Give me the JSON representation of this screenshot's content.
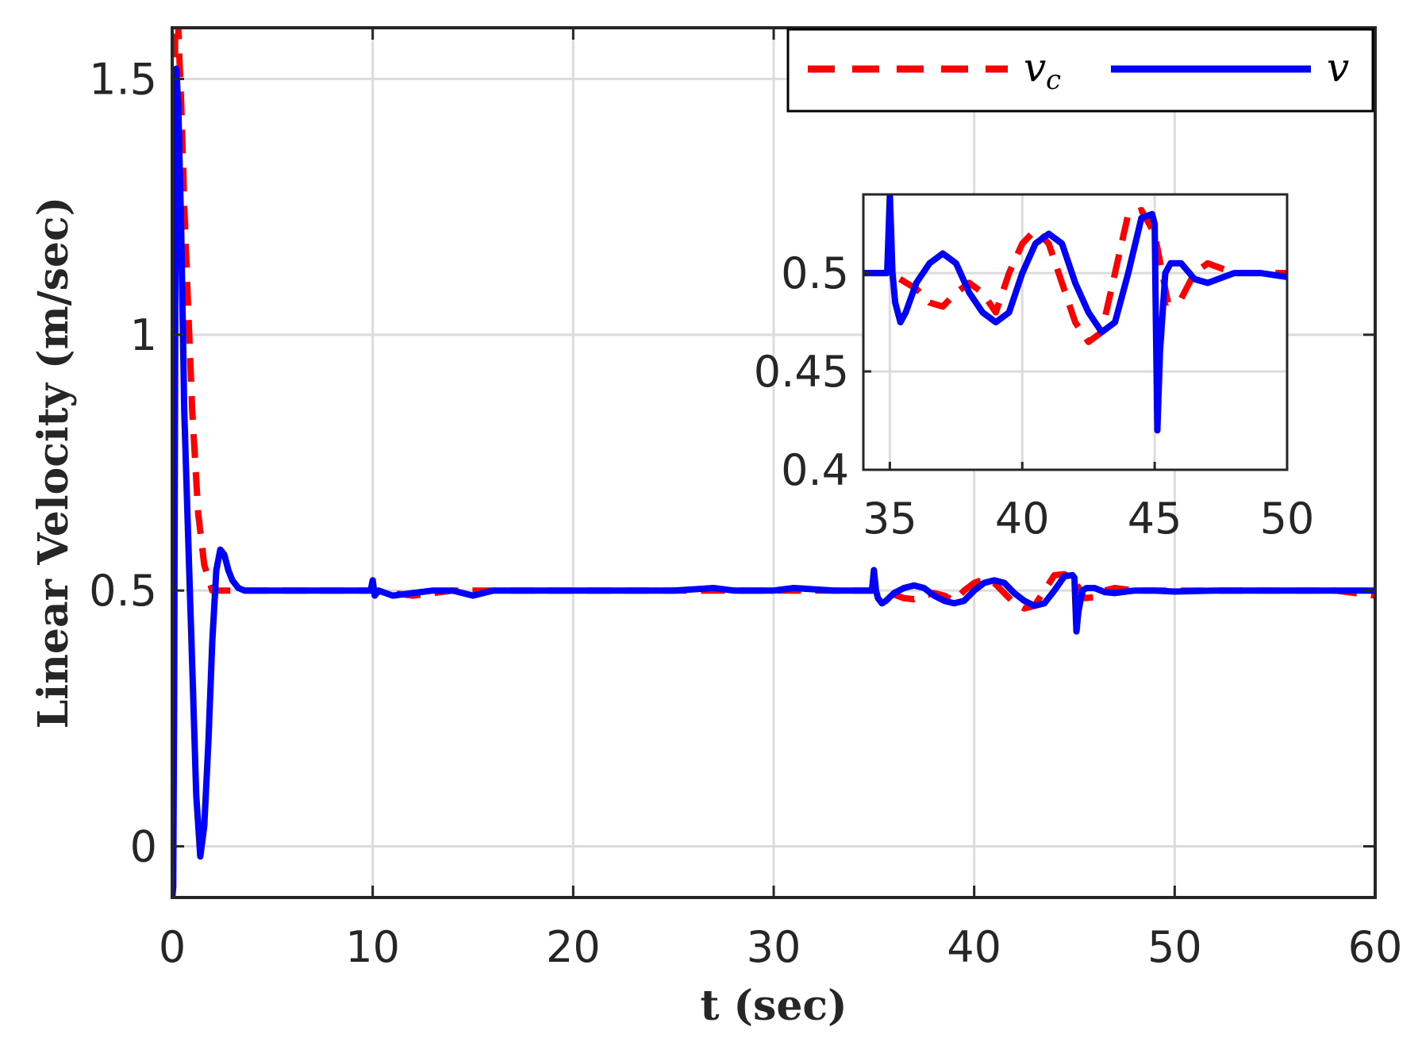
{
  "chart_data": {
    "type": "line",
    "xlabel": "t (sec)",
    "ylabel": "Linear Velocity (m/sec)",
    "xlim": [
      0,
      60
    ],
    "ylim": [
      -0.1,
      1.6
    ],
    "xticks": [
      0,
      10,
      20,
      30,
      40,
      50,
      60
    ],
    "yticks": [
      0,
      0.5,
      1,
      1.5
    ],
    "xtick_labels": [
      "0",
      "10",
      "20",
      "30",
      "40",
      "50",
      "60"
    ],
    "ytick_labels": [
      "0",
      "0.5",
      "1",
      "1.5"
    ],
    "grid": true,
    "legend_position": "top-right",
    "colors": {
      "vc": "#ff0000",
      "v": "#0000ff",
      "grid": "#dcdcdc",
      "axes": "#262626"
    },
    "series": [
      {
        "name": "v_c",
        "style": "dashed",
        "color": "#ff0000",
        "x": [
          0,
          0.15,
          0.3,
          0.45,
          0.6,
          0.8,
          1.0,
          1.3,
          1.6,
          2.0,
          2.5,
          3.0,
          4.0,
          5.0,
          10.0,
          12,
          14,
          16,
          18,
          20,
          22,
          25,
          28,
          30,
          32,
          34,
          35,
          35.5,
          36,
          36.5,
          37,
          37.5,
          38,
          38.5,
          39,
          39.5,
          40,
          40.5,
          41,
          41.5,
          42,
          42.5,
          43,
          43.5,
          44,
          44.5,
          45,
          45.5,
          46,
          46.5,
          47,
          48,
          49,
          50,
          52,
          55,
          58,
          60
        ],
        "y": [
          0.5,
          1.62,
          1.6,
          1.45,
          1.25,
          1.05,
          0.85,
          0.65,
          0.55,
          0.5,
          0.5,
          0.5,
          0.5,
          0.5,
          0.5,
          0.49,
          0.5,
          0.5,
          0.5,
          0.5,
          0.5,
          0.5,
          0.5,
          0.5,
          0.5,
          0.5,
          0.5,
          0.496,
          0.492,
          0.485,
          0.483,
          0.49,
          0.495,
          0.49,
          0.48,
          0.5,
          0.515,
          0.522,
          0.515,
          0.495,
          0.475,
          0.465,
          0.47,
          0.5,
          0.53,
          0.532,
          0.52,
          0.485,
          0.487,
          0.5,
          0.505,
          0.5,
          0.5,
          0.5,
          0.5,
          0.5,
          0.5,
          0.49
        ]
      },
      {
        "name": "v",
        "style": "solid",
        "color": "#0000ff",
        "x": [
          0,
          0.05,
          0.1,
          0.15,
          0.2,
          0.3,
          0.45,
          0.6,
          0.8,
          1.0,
          1.2,
          1.4,
          1.6,
          1.8,
          2.0,
          2.2,
          2.4,
          2.6,
          2.8,
          3.0,
          3.3,
          3.6,
          4.0,
          4.5,
          5.0,
          6.0,
          9.9,
          10.0,
          10.1,
          10.3,
          11,
          12,
          13,
          14,
          15,
          16,
          18,
          20,
          22,
          25,
          27,
          28,
          30,
          31,
          33,
          34.9,
          35.0,
          35.1,
          35.2,
          35.4,
          35.6,
          36,
          36.5,
          37,
          37.5,
          38,
          38.5,
          39,
          39.5,
          40,
          40.5,
          41,
          41.5,
          42,
          42.5,
          43,
          43.5,
          44,
          44.5,
          44.9,
          45.0,
          45.05,
          45.1,
          45.2,
          45.4,
          45.6,
          46,
          46.5,
          47,
          48,
          49,
          50,
          52,
          55,
          58,
          60
        ],
        "y": [
          -0.1,
          -0.08,
          0.3,
          1.0,
          1.52,
          1.45,
          1.2,
          0.85,
          0.6,
          0.35,
          0.1,
          -0.02,
          0.04,
          0.2,
          0.4,
          0.54,
          0.58,
          0.57,
          0.54,
          0.52,
          0.505,
          0.5,
          0.5,
          0.5,
          0.5,
          0.5,
          0.5,
          0.52,
          0.49,
          0.5,
          0.49,
          0.495,
          0.5,
          0.5,
          0.49,
          0.5,
          0.5,
          0.5,
          0.5,
          0.5,
          0.505,
          0.5,
          0.5,
          0.505,
          0.5,
          0.5,
          0.54,
          0.5,
          0.485,
          0.475,
          0.48,
          0.495,
          0.505,
          0.51,
          0.505,
          0.49,
          0.48,
          0.475,
          0.48,
          0.5,
          0.515,
          0.52,
          0.515,
          0.495,
          0.48,
          0.47,
          0.475,
          0.5,
          0.528,
          0.53,
          0.525,
          0.47,
          0.42,
          0.46,
          0.5,
          0.505,
          0.505,
          0.497,
          0.495,
          0.5,
          0.5,
          0.498,
          0.5,
          0.5,
          0.5,
          0.5
        ]
      }
    ],
    "inset": {
      "xlim": [
        34,
        50
      ],
      "ylim": [
        0.4,
        0.54
      ],
      "xticks": [
        35,
        40,
        45,
        50
      ],
      "yticks": [
        0.4,
        0.45,
        0.5
      ],
      "xtick_labels": [
        "35",
        "40",
        "45",
        "50"
      ],
      "ytick_labels": [
        "0.4",
        "0.45",
        "0.5"
      ],
      "grid": true
    }
  },
  "legend": {
    "vc_main": "v",
    "vc_sub": "c",
    "v_label": "v"
  }
}
